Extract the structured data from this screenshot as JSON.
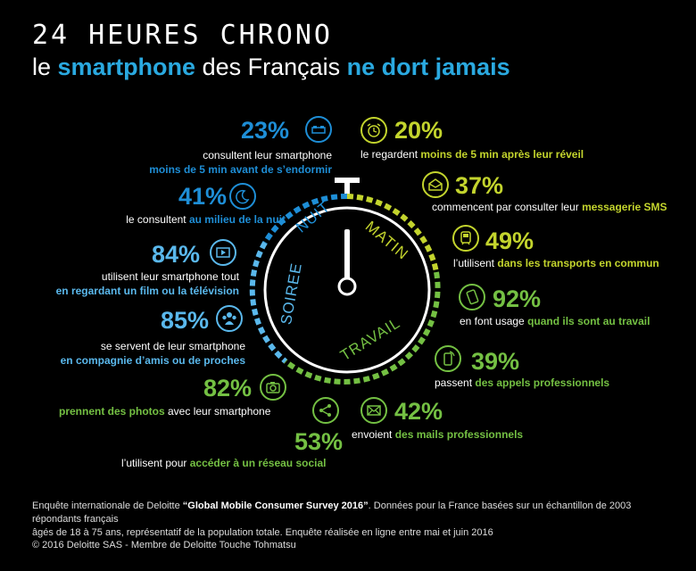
{
  "title": "24 HEURES CHRONO",
  "subtitle": {
    "pre": "le ",
    "hl1": "smartphone",
    "mid": " des Français ",
    "hl2": "ne dort jamais"
  },
  "segments": {
    "nuit": "NUIT",
    "matin": "MATIN",
    "soiree": "SOIREE",
    "travail": "TRAVAIL"
  },
  "stats": {
    "s23": {
      "pct": "23%",
      "l1": "consultent leur smartphone",
      "l2": "moins de 5 min avant de s’endormir"
    },
    "s41": {
      "pct": "41%",
      "t1": "le consultent ",
      "t2": "au milieu de la nuit"
    },
    "s84": {
      "pct": "84%",
      "l1": "utilisent leur smartphone tout",
      "l2": "en regardant un film ou la télévision"
    },
    "s85": {
      "pct": "85%",
      "l1": "se servent de leur smartphone",
      "l2": "en compagnie d’amis ou de proches"
    },
    "s82": {
      "pct": "82%",
      "t1": "prennent des photos",
      "t2": " avec leur smartphone"
    },
    "s53": {
      "pct": "53%",
      "t1": "l’utilisent pour ",
      "t2": "accéder à un réseau social"
    },
    "s20": {
      "pct": "20%",
      "t1": "le regardent ",
      "t2": "moins de 5 min après leur réveil"
    },
    "s37": {
      "pct": "37%",
      "t1": "commencent par consulter leur ",
      "t2": "messagerie SMS"
    },
    "s49": {
      "pct": "49%",
      "t1": "l’utilisent ",
      "t2": "dans les transports en commun"
    },
    "s92": {
      "pct": "92%",
      "t1": "en font usage ",
      "t2": "quand ils sont au travail"
    },
    "s39": {
      "pct": "39%",
      "t1": "passent ",
      "t2": "des appels professionnels"
    },
    "s42": {
      "pct": "42%",
      "t1": "envoient ",
      "t2": "des mails professionnels"
    }
  },
  "footer": {
    "line1_pre": "Enquête internationale de Deloitte ",
    "line1_bold": "“Global Mobile Consumer Survey 2016”",
    "line1_post": ". Données pour la France basées sur un échantillon de 2003 répondants français",
    "line2": "âgés de 18 à 75 ans, représentatif de la population totale. Enquête réalisée en ligne entre mai et juin 2016",
    "copyright": "© 2016 Deloitte SAS - Membre de Deloitte Touche Tohmatsu"
  },
  "colors": {
    "night": "#1e8ed6",
    "evening": "#5ab8ec",
    "morning": "#c3d42d",
    "work": "#74c043",
    "work2": "#3ea84a"
  },
  "icons": {
    "s23": "bed-icon",
    "s41": "moon-icon",
    "s84": "video-icon",
    "s85": "group-icon",
    "s82": "camera-icon",
    "s53": "share-icon",
    "s20": "alarm-clock-icon",
    "s37": "envelope-open-icon",
    "s49": "train-icon",
    "s92": "phone-icon",
    "s39": "call-icon",
    "s42": "mail-icon"
  }
}
